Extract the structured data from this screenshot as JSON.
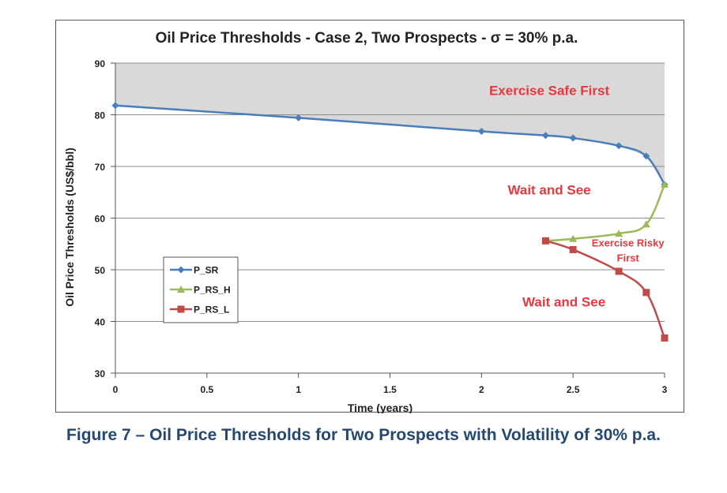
{
  "figure_caption": "Figure 7 – Oil Price Thresholds for Two Prospects with Volatility of 30% p.a.",
  "chart_data": {
    "type": "line",
    "title": "Oil Price Thresholds - Case 2, Two Prospects - σ = 30% p.a.",
    "xlabel": "Time (years)",
    "ylabel": "Oil Price Thresholds (US$/bbl)",
    "xlim": [
      0,
      3
    ],
    "ylim": [
      30,
      90
    ],
    "x_ticks": [
      0,
      0.5,
      1,
      1.5,
      2,
      2.5,
      3
    ],
    "x_tick_labels": [
      "0",
      "0.5",
      "1",
      "1.5",
      "2",
      "2.5",
      "3"
    ],
    "y_ticks": [
      30,
      40,
      50,
      60,
      70,
      80,
      90
    ],
    "y_tick_labels": [
      "30",
      "40",
      "50",
      "60",
      "70",
      "80",
      "90"
    ],
    "grid": "horizontal",
    "legend_position": "left",
    "series": [
      {
        "name": "P_SR",
        "color": "#4a7ebb",
        "marker": "diamond",
        "x": [
          0,
          1,
          2,
          2.35,
          2.5,
          2.75,
          2.9,
          3
        ],
        "y": [
          81.8,
          79.4,
          76.8,
          76.0,
          75.5,
          74.0,
          72.0,
          66.5
        ]
      },
      {
        "name": "P_RS_H",
        "color": "#9bbb59",
        "marker": "triangle",
        "x": [
          2.35,
          2.5,
          2.75,
          2.9,
          3
        ],
        "y": [
          55.6,
          56.0,
          57.0,
          58.8,
          66.5
        ]
      },
      {
        "name": "P_RS_L",
        "color": "#be4b48",
        "marker": "square",
        "x": [
          2.35,
          2.5,
          2.75,
          2.9,
          3
        ],
        "y": [
          55.6,
          53.9,
          49.7,
          45.6,
          36.8
        ]
      }
    ],
    "region_fill": {
      "color": "#d9d9d9"
    },
    "annotations": [
      {
        "text": "Exercise Safe First",
        "x": 2.37,
        "y": 83.8
      },
      {
        "text": "Wait and See",
        "x": 2.37,
        "y": 64.6
      },
      {
        "text": "Exercise Risky",
        "x": 2.8,
        "y": 54.5
      },
      {
        "text": "First",
        "x": 2.8,
        "y": 51.6
      },
      {
        "text": "Wait and See",
        "x": 2.45,
        "y": 42.9
      }
    ],
    "annotation_color": "#e8383d"
  }
}
